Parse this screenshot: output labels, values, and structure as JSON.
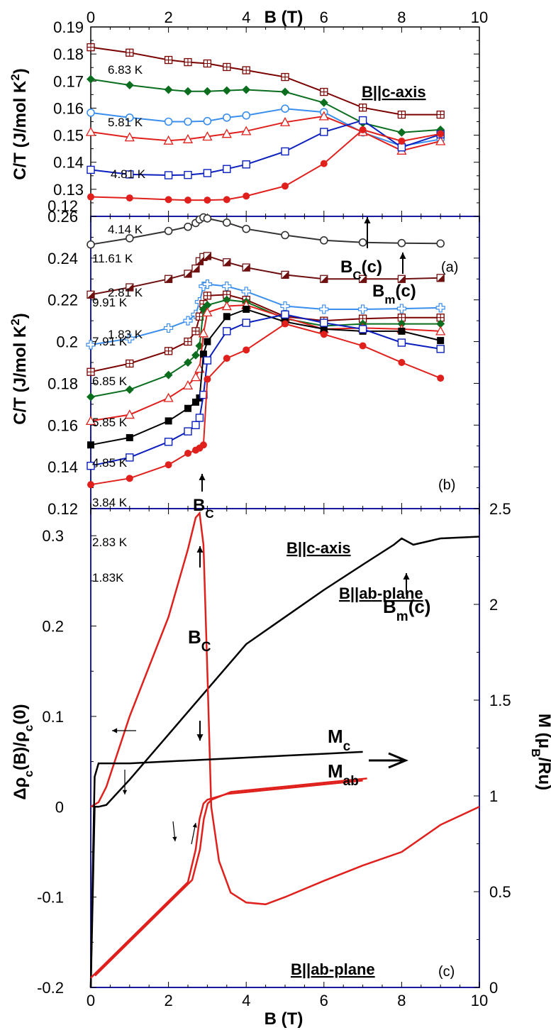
{
  "chart_data": [
    {
      "panel_label": "(a)",
      "type": "line",
      "xlabel": "B (T)",
      "ylabel": "C/T (J/mol K²)",
      "xlim": [
        0,
        10
      ],
      "ylim": [
        0.12,
        0.19
      ],
      "xticks": [
        "0",
        "2",
        "4",
        "6",
        "8",
        "10"
      ],
      "yticks": [
        "0.12",
        "0.13",
        "0.14",
        "0.15",
        "0.16",
        "0.17",
        "0.18",
        "0.19"
      ],
      "field_direction_label": "B||c-axis",
      "series": [
        {
          "name": "6.83 K",
          "color": "#7a0000",
          "marker": "square-plus",
          "x": [
            0,
            1,
            2,
            2.5,
            3,
            3.5,
            4,
            5,
            6,
            7,
            8,
            9
          ],
          "y": [
            0.1825,
            0.1805,
            0.1778,
            0.177,
            0.1765,
            0.1752,
            0.174,
            0.1715,
            0.166,
            0.1602,
            0.1576,
            0.1576
          ]
        },
        {
          "name": "5.81 K",
          "color": "#0a6e1e",
          "marker": "diamond",
          "x": [
            0,
            1,
            2,
            2.5,
            3,
            3.5,
            4,
            5,
            6,
            7,
            8,
            9
          ],
          "y": [
            0.1707,
            0.1685,
            0.1668,
            0.1662,
            0.1662,
            0.1665,
            0.1668,
            0.166,
            0.162,
            0.1545,
            0.151,
            0.152
          ]
        },
        {
          "name": "4.81 K",
          "color": "#3a8eed",
          "marker": "circle-open",
          "x": [
            0,
            1,
            2,
            2.5,
            3,
            3.5,
            4,
            5,
            6,
            7,
            8,
            9
          ],
          "y": [
            0.1583,
            0.1565,
            0.155,
            0.155,
            0.1552,
            0.1565,
            0.1573,
            0.1598,
            0.1585,
            0.151,
            0.146,
            0.1485
          ]
        },
        {
          "name": "4.14 K",
          "color": "#e0201c",
          "marker": "triangle-open",
          "x": [
            0,
            1,
            2,
            2.5,
            3,
            3.5,
            4,
            5,
            6,
            7,
            8,
            9
          ],
          "y": [
            0.1512,
            0.1492,
            0.148,
            0.1485,
            0.1495,
            0.1505,
            0.1515,
            0.1548,
            0.157,
            0.1512,
            0.1443,
            0.1478
          ]
        },
        {
          "name": "2.81 K",
          "color": "#0a1fbe",
          "marker": "square-open",
          "x": [
            0,
            1,
            2,
            2.5,
            3,
            3.5,
            4,
            5,
            6,
            7,
            8,
            9
          ],
          "y": [
            0.1372,
            0.1355,
            0.1352,
            0.1353,
            0.136,
            0.1375,
            0.1392,
            0.144,
            0.1512,
            0.1555,
            0.1455,
            0.1503
          ]
        },
        {
          "name": "1.83 K",
          "color": "#e0201c",
          "marker": "circle-filled",
          "x": [
            0,
            1,
            2,
            2.5,
            3,
            3.5,
            4,
            5,
            6,
            7,
            8,
            9
          ],
          "y": [
            0.1272,
            0.1268,
            0.1262,
            0.126,
            0.126,
            0.1262,
            0.1275,
            0.1312,
            0.1395,
            0.152,
            0.1478,
            0.1505
          ]
        }
      ],
      "annotations": [
        "B_C(c)",
        "B_m(c)"
      ]
    },
    {
      "panel_label": "(b)",
      "type": "line",
      "xlabel": "B (T)",
      "ylabel": "C/T (J/mol K²)",
      "xlim": [
        0,
        10
      ],
      "ylim": [
        0.12,
        0.26
      ],
      "yticks": [
        "0.12",
        "0.14",
        "0.16",
        "0.18",
        "0.2",
        "0.22",
        "0.24",
        "0.26"
      ],
      "field_direction_label": "B||ab-plane",
      "series": [
        {
          "name": "11.61 K",
          "color": "#333333",
          "marker": "circle-open",
          "x": [
            0,
            1,
            2,
            2.5,
            2.7,
            2.8,
            2.9,
            3.0,
            3.5,
            4,
            5,
            6,
            7,
            8,
            9
          ],
          "y": [
            0.2465,
            0.2495,
            0.253,
            0.255,
            0.2568,
            0.2585,
            0.2595,
            0.259,
            0.257,
            0.254,
            0.251,
            0.2485,
            0.2475,
            0.2472,
            0.247
          ]
        },
        {
          "name": "9.91 K",
          "color": "#6e1010",
          "marker": "half-square",
          "x": [
            0,
            1,
            2,
            2.5,
            2.7,
            2.8,
            2.9,
            3.0,
            3.5,
            4,
            5,
            6,
            7,
            8,
            9
          ],
          "y": [
            0.2225,
            0.226,
            0.23,
            0.2325,
            0.235,
            0.2385,
            0.2405,
            0.241,
            0.238,
            0.2355,
            0.232,
            0.23,
            0.23,
            0.23,
            0.2305
          ]
        },
        {
          "name": "7.91 K",
          "color": "#3a8eed",
          "marker": "cross-open",
          "x": [
            0,
            1,
            2,
            2.5,
            2.7,
            2.8,
            2.9,
            3.0,
            3.5,
            4,
            5,
            6,
            7,
            8,
            9
          ],
          "y": [
            0.1985,
            0.2015,
            0.2065,
            0.21,
            0.213,
            0.219,
            0.2265,
            0.2275,
            0.2265,
            0.224,
            0.217,
            0.2155,
            0.2155,
            0.2158,
            0.2162
          ]
        },
        {
          "name": "6.85 K",
          "color": "#7a0000",
          "marker": "square-plus",
          "x": [
            0,
            1,
            2,
            2.5,
            2.7,
            2.8,
            2.9,
            3.0,
            3.5,
            4,
            5,
            6,
            7,
            8,
            9
          ],
          "y": [
            0.1855,
            0.1895,
            0.1955,
            0.2,
            0.205,
            0.212,
            0.218,
            0.222,
            0.2225,
            0.22,
            0.212,
            0.21,
            0.211,
            0.2115,
            0.2115
          ]
        },
        {
          "name": "5.85 K",
          "color": "#0a6e1e",
          "marker": "diamond",
          "x": [
            0,
            1,
            2,
            2.5,
            2.7,
            2.8,
            2.9,
            3.0,
            3.5,
            4,
            5,
            6,
            7,
            8,
            9
          ],
          "y": [
            0.1735,
            0.177,
            0.184,
            0.19,
            0.1935,
            0.198,
            0.2155,
            0.2175,
            0.22,
            0.219,
            0.211,
            0.2075,
            0.2085,
            0.2085,
            0.2085
          ]
        },
        {
          "name": "4.85 K",
          "color": "#e0201c",
          "marker": "triangle-open",
          "x": [
            0,
            1,
            2,
            2.5,
            2.7,
            2.8,
            2.9,
            3.0,
            3.5,
            4,
            5,
            6,
            7,
            8,
            9
          ],
          "y": [
            0.162,
            0.165,
            0.173,
            0.179,
            0.183,
            0.187,
            0.204,
            0.214,
            0.217,
            0.2175,
            0.2115,
            0.206,
            0.2065,
            0.206,
            0.205
          ]
        },
        {
          "name": "3.84 K",
          "color": "#000000",
          "marker": "square-filled",
          "x": [
            0,
            1,
            2,
            2.5,
            2.7,
            2.8,
            2.9,
            3.0,
            3.5,
            4,
            5,
            6,
            7,
            8,
            9
          ],
          "y": [
            0.1505,
            0.154,
            0.162,
            0.168,
            0.171,
            0.173,
            0.194,
            0.2,
            0.212,
            0.2155,
            0.2095,
            0.206,
            0.205,
            0.205,
            0.2005
          ]
        },
        {
          "name": "2.83 K",
          "color": "#0a1fbe",
          "marker": "square-open",
          "x": [
            0,
            1,
            2,
            2.5,
            2.7,
            2.8,
            2.9,
            3.0,
            3.5,
            4,
            5,
            6,
            7,
            8,
            9
          ],
          "y": [
            0.1405,
            0.1445,
            0.152,
            0.157,
            0.16,
            0.1635,
            0.1745,
            0.191,
            0.205,
            0.209,
            0.213,
            0.209,
            0.206,
            0.1995,
            0.1965
          ]
        },
        {
          "name": "1.83 K",
          "color": "#e0201c",
          "marker": "circle-filled",
          "x": [
            0,
            1,
            2,
            2.5,
            2.7,
            2.8,
            2.9,
            3.0,
            3.5,
            4,
            5,
            6,
            7,
            8,
            9
          ],
          "y": [
            0.1315,
            0.1345,
            0.141,
            0.1465,
            0.148,
            0.149,
            0.1505,
            0.182,
            0.192,
            0.196,
            0.2085,
            0.2035,
            0.198,
            0.19,
            0.1825
          ]
        }
      ],
      "series_labels": [
        "11.61 K",
        "9.91 K",
        "7.91 K",
        "6.85 K",
        "5.85 K",
        "4.85 K",
        "3.84 K",
        "2.83 K",
        "1.83K"
      ],
      "annotations": [
        "B_C"
      ]
    },
    {
      "panel_label": "(c)",
      "type": "line",
      "xlabel": "B (T)",
      "ylabel_left": "Δρ_c(B)/ρ_c(0)",
      "ylabel_right": "M (μ_B/Ru)",
      "xlim": [
        0,
        10
      ],
      "ylim_left": [
        -0.2,
        0.33
      ],
      "ylim_right": [
        0,
        2.5
      ],
      "xticks": [
        "0",
        "2",
        "4",
        "6",
        "8",
        "10"
      ],
      "yticks_left": [
        "-0.2",
        "-0.1",
        "0",
        "0.1",
        "0.2",
        "0.3"
      ],
      "yticks_right": [
        "0",
        "0.5",
        "1",
        "1.5",
        "2",
        "2.5"
      ],
      "series": [
        {
          "label": "B||c-axis",
          "axis": "left",
          "color": "#000000",
          "x": [
            0,
            0.1,
            0.2,
            0.4,
            1,
            2,
            3,
            4,
            5,
            6,
            7,
            7.8,
            8.0,
            8.3,
            8.6,
            9,
            10
          ],
          "y": [
            -0.2,
            0.0,
            0.0,
            0.002,
            0.03,
            0.08,
            0.13,
            0.18,
            0.21,
            0.24,
            0.268,
            0.29,
            0.297,
            0.29,
            0.293,
            0.297,
            0.299
          ]
        },
        {
          "label": "B||ab-plane",
          "axis": "left",
          "color": "#e0201c",
          "x": [
            0,
            0.2,
            0.4,
            1,
            2,
            2.5,
            2.7,
            2.8,
            2.9,
            3.0,
            3.1,
            3.3,
            3.6,
            4,
            4.5,
            5,
            6,
            7,
            8,
            9,
            10
          ],
          "y": [
            0.0,
            0.005,
            0.022,
            0.1,
            0.21,
            0.285,
            0.32,
            0.325,
            0.29,
            0.15,
            0.0,
            -0.06,
            -0.095,
            -0.106,
            -0.108,
            -0.1,
            -0.082,
            -0.065,
            -0.05,
            -0.02,
            0.0
          ]
        },
        {
          "label": "M_c",
          "axis": "right",
          "color": "#000000",
          "x": [
            0,
            0.05,
            0.1,
            0.2,
            1,
            2,
            3,
            4,
            5,
            6,
            7
          ],
          "y": [
            0.0,
            0.6,
            1.1,
            1.17,
            1.17,
            1.18,
            1.19,
            1.2,
            1.21,
            1.22,
            1.23
          ]
        },
        {
          "label": "M_ab",
          "axis": "right",
          "color": "#e0201c",
          "x": [
            0,
            0.5,
            1,
            2,
            2.5,
            2.7,
            2.8,
            2.9,
            3.0,
            3.5,
            4,
            5,
            6,
            7
          ],
          "y": [
            0.05,
            0.15,
            0.25,
            0.45,
            0.55,
            0.72,
            0.88,
            0.96,
            0.98,
            1.01,
            1.02,
            1.04,
            1.06,
            1.08
          ]
        }
      ],
      "labels": {
        "c_axis": "B||c-axis",
        "ab_plane": "B||ab-plane",
        "bc": "B_C",
        "bm": "B_m(c)",
        "mc": "M_c",
        "mab": "M_ab"
      }
    }
  ]
}
